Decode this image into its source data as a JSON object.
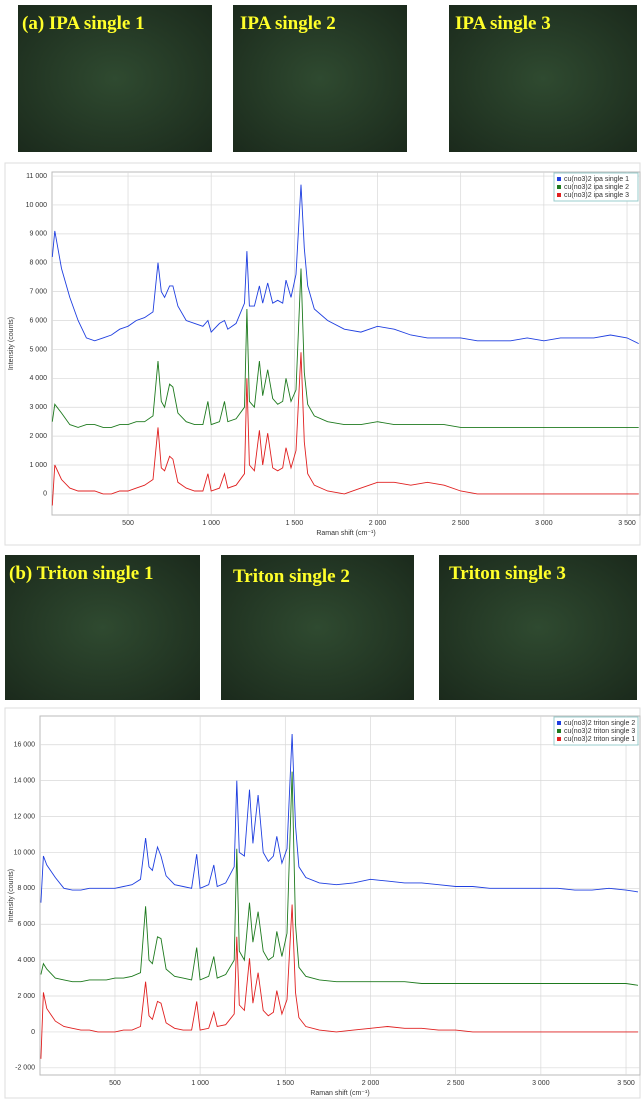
{
  "image_rows": [
    {
      "labels": [
        "(a) IPA single 1",
        "IPA single 2",
        "IPA single 3"
      ]
    },
    {
      "labels": [
        "(b) Triton single 1",
        "Triton single 2",
        "Triton single 3"
      ]
    }
  ],
  "chart_data": [
    {
      "type": "line",
      "x_label": "Raman shift (cm⁻¹)",
      "y_label": "Intensity (counts)",
      "xlim": [
        43,
        3578
      ],
      "ylim": [
        -730,
        11140
      ],
      "grid": true,
      "legend": "top-right",
      "xticks": [
        500,
        {
          "value": 1000,
          "label": "1 000"
        },
        {
          "value": 1500,
          "label": "1 500"
        },
        {
          "value": 2000,
          "label": "2 000"
        },
        {
          "value": 2500,
          "label": "2 500"
        },
        {
          "value": 3000,
          "label": "3 000"
        },
        {
          "value": 3500,
          "label": "3 500"
        }
      ],
      "yticks": [
        0,
        {
          "value": 1000,
          "label": "1 000"
        },
        {
          "value": 2000,
          "label": "2 000"
        },
        {
          "value": 3000,
          "label": "3 000"
        },
        {
          "value": 4000,
          "label": "4 000"
        },
        {
          "value": 5000,
          "label": "5 000"
        },
        {
          "value": 6000,
          "label": "6 000"
        },
        {
          "value": 7000,
          "label": "7 000"
        },
        {
          "value": 8000,
          "label": "8 000"
        },
        {
          "value": 9000,
          "label": "9 000"
        },
        {
          "value": 10000,
          "label": "10 000"
        },
        {
          "value": 11000,
          "label": "11 000"
        }
      ],
      "x": [
        45,
        60,
        100,
        150,
        200,
        250,
        300,
        350,
        400,
        450,
        500,
        550,
        600,
        650,
        680,
        700,
        720,
        750,
        770,
        800,
        850,
        900,
        950,
        980,
        1000,
        1050,
        1080,
        1100,
        1150,
        1200,
        1215,
        1230,
        1260,
        1290,
        1310,
        1340,
        1370,
        1400,
        1430,
        1450,
        1480,
        1510,
        1540,
        1560,
        1580,
        1620,
        1700,
        1800,
        1900,
        2000,
        2100,
        2200,
        2300,
        2400,
        2500,
        2600,
        2700,
        2800,
        2900,
        3000,
        3100,
        3200,
        3300,
        3400,
        3500,
        3570
      ],
      "series": [
        {
          "name": "cu(no3)2 ipa single 1",
          "color": "#1f3fe0",
          "values": [
            8200,
            9100,
            7800,
            6800,
            6000,
            5400,
            5300,
            5400,
            5500,
            5700,
            5800,
            6000,
            6100,
            6300,
            8000,
            7000,
            6800,
            7200,
            7200,
            6500,
            6000,
            5900,
            5800,
            6000,
            5600,
            5900,
            6000,
            5700,
            5900,
            6600,
            8400,
            6500,
            6500,
            7200,
            6600,
            7300,
            6600,
            6700,
            6600,
            7400,
            6800,
            7600,
            10700,
            8500,
            7200,
            6400,
            6000,
            5700,
            5600,
            5800,
            5700,
            5500,
            5400,
            5400,
            5400,
            5300,
            5300,
            5300,
            5400,
            5300,
            5400,
            5400,
            5400,
            5500,
            5400,
            5200
          ]
        },
        {
          "name": "cu(no3)2 ipa single 2",
          "color": "#1e7a1e",
          "values": [
            2500,
            3100,
            2800,
            2400,
            2300,
            2400,
            2400,
            2300,
            2300,
            2400,
            2400,
            2500,
            2500,
            2700,
            4600,
            3200,
            3000,
            3800,
            3700,
            2800,
            2500,
            2400,
            2400,
            3200,
            2400,
            2500,
            3200,
            2500,
            2600,
            3000,
            6400,
            3200,
            3000,
            4600,
            3400,
            4300,
            3300,
            3100,
            3200,
            4000,
            3200,
            3600,
            7800,
            4200,
            3100,
            2700,
            2500,
            2400,
            2400,
            2500,
            2400,
            2400,
            2400,
            2400,
            2300,
            2300,
            2300,
            2300,
            2300,
            2300,
            2300,
            2300,
            2300,
            2300,
            2300,
            2300
          ]
        },
        {
          "name": "cu(no3)2 ipa single 3",
          "color": "#e02020",
          "values": [
            -400,
            1000,
            500,
            200,
            100,
            100,
            100,
            0,
            0,
            100,
            100,
            200,
            300,
            500,
            2300,
            900,
            800,
            1300,
            1200,
            400,
            200,
            100,
            100,
            700,
            100,
            200,
            700,
            200,
            300,
            700,
            4000,
            1000,
            800,
            2200,
            1000,
            2100,
            900,
            800,
            900,
            1600,
            900,
            1500,
            4900,
            1800,
            700,
            300,
            100,
            0,
            200,
            400,
            400,
            300,
            400,
            300,
            100,
            0,
            0,
            0,
            0,
            0,
            0,
            0,
            0,
            0,
            0,
            0
          ]
        }
      ]
    },
    {
      "type": "line",
      "x_label": "Raman shift (cm⁻¹)",
      "y_label": "Intensity (counts)",
      "xlim": [
        60,
        3582
      ],
      "ylim": [
        -2400,
        17600
      ],
      "grid": true,
      "legend": "top-right",
      "xticks": [
        500,
        {
          "value": 1000,
          "label": "1 000"
        },
        {
          "value": 1500,
          "label": "1 500"
        },
        {
          "value": 2000,
          "label": "2 000"
        },
        {
          "value": 2500,
          "label": "2 500"
        },
        {
          "value": 3000,
          "label": "3 000"
        },
        {
          "value": 3500,
          "label": "3 500"
        }
      ],
      "yticks": [
        {
          "value": -2000,
          "label": "-2 000"
        },
        0,
        {
          "value": 2000,
          "label": "2 000"
        },
        {
          "value": 4000,
          "label": "4 000"
        },
        {
          "value": 6000,
          "label": "6 000"
        },
        {
          "value": 8000,
          "label": "8 000"
        },
        {
          "value": 10000,
          "label": "10 000"
        },
        {
          "value": 12000,
          "label": "12 000"
        },
        {
          "value": 14000,
          "label": "14 000"
        },
        {
          "value": 16000,
          "label": "16 000"
        }
      ],
      "x": [
        65,
        80,
        100,
        150,
        200,
        250,
        300,
        350,
        400,
        450,
        500,
        550,
        600,
        650,
        680,
        700,
        720,
        750,
        770,
        800,
        850,
        900,
        950,
        980,
        1000,
        1050,
        1080,
        1100,
        1150,
        1200,
        1215,
        1230,
        1260,
        1290,
        1310,
        1340,
        1370,
        1400,
        1430,
        1450,
        1480,
        1510,
        1540,
        1560,
        1580,
        1620,
        1700,
        1800,
        1900,
        2000,
        2100,
        2200,
        2300,
        2400,
        2500,
        2600,
        2700,
        2800,
        2900,
        3000,
        3100,
        3200,
        3300,
        3400,
        3500,
        3570
      ],
      "series": [
        {
          "name": "cu(no3)2 triton single 2",
          "color": "#1f3fe0",
          "values": [
            7200,
            9800,
            9300,
            8600,
            8000,
            7900,
            7900,
            8000,
            8000,
            8000,
            8000,
            8100,
            8200,
            8500,
            10800,
            9200,
            9000,
            10300,
            9800,
            8700,
            8200,
            8100,
            8000,
            9900,
            8000,
            8200,
            9300,
            8100,
            8300,
            9200,
            14000,
            10000,
            9800,
            13500,
            10500,
            13200,
            10000,
            9500,
            9800,
            10900,
            9400,
            10200,
            16600,
            11500,
            9200,
            8600,
            8300,
            8200,
            8300,
            8500,
            8400,
            8300,
            8300,
            8200,
            8100,
            8100,
            8000,
            8000,
            8000,
            8000,
            8000,
            7900,
            7900,
            8000,
            7900,
            7800
          ]
        },
        {
          "name": "cu(no3)2 triton single 3",
          "color": "#1e7a1e",
          "values": [
            3200,
            3800,
            3500,
            3000,
            2900,
            2800,
            2800,
            2900,
            2900,
            2900,
            3000,
            3000,
            3100,
            3300,
            7000,
            4000,
            3800,
            5300,
            5200,
            3500,
            3100,
            3000,
            2900,
            4700,
            2900,
            3100,
            4200,
            3000,
            3200,
            4000,
            10200,
            4500,
            4000,
            7200,
            5000,
            6700,
            4500,
            4000,
            4200,
            5600,
            4200,
            5500,
            14500,
            6000,
            3600,
            3100,
            2900,
            2800,
            2800,
            2800,
            2800,
            2800,
            2700,
            2700,
            2700,
            2700,
            2700,
            2700,
            2700,
            2700,
            2700,
            2700,
            2700,
            2700,
            2700,
            2600
          ]
        },
        {
          "name": "cu(no3)2 triton single 1",
          "color": "#e02020",
          "values": [
            -1500,
            2200,
            1300,
            600,
            300,
            200,
            100,
            100,
            0,
            0,
            0,
            100,
            100,
            300,
            2800,
            900,
            700,
            1700,
            1600,
            500,
            200,
            100,
            100,
            1700,
            100,
            200,
            1100,
            300,
            400,
            1000,
            5300,
            1500,
            1200,
            4100,
            1600,
            3300,
            1200,
            900,
            1100,
            2300,
            1000,
            1800,
            7100,
            2200,
            800,
            300,
            100,
            0,
            100,
            200,
            300,
            200,
            200,
            100,
            100,
            0,
            0,
            0,
            0,
            0,
            0,
            0,
            0,
            0,
            0,
            0
          ]
        }
      ]
    }
  ]
}
